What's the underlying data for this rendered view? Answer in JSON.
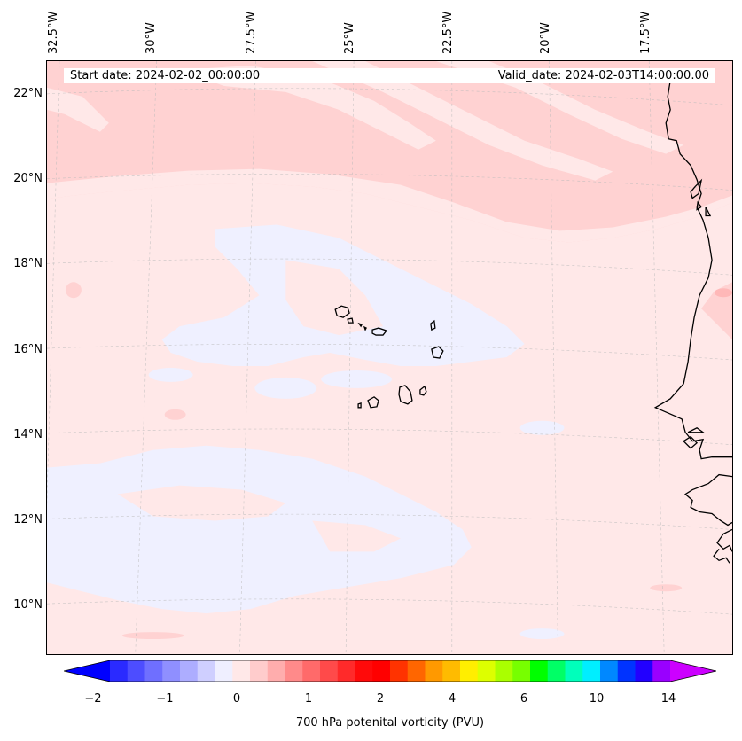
{
  "map": {
    "start_label": "Start date: 2024-02-02_00:00:00",
    "valid_label": "Valid_date: 2024-02-03T14:00:00.00",
    "lon_labels": [
      "32.5°W",
      "30°W",
      "27.5°W",
      "25°W",
      "22.5°W",
      "20°W",
      "17.5°W"
    ],
    "lat_labels": [
      "22°N",
      "20°N",
      "18°N",
      "16°N",
      "14°N",
      "12°N",
      "10°N"
    ],
    "colors": {
      "ocean_base": "#ffe8e8",
      "band_pos": "#ffd2d2",
      "band_neg": "#eff0ff",
      "coast": "#000000"
    }
  },
  "colorbar": {
    "label": "700 hPa potenital vorticity (PVU)",
    "tick_labels": [
      "−2",
      "−1",
      "0",
      "1",
      "2",
      "4",
      "6",
      "10",
      "14"
    ],
    "colors": [
      "#0000ff",
      "#2a2aff",
      "#4d4dff",
      "#6f6fff",
      "#8f8fff",
      "#adadff",
      "#cfcfff",
      "#efefff",
      "#ffe8e8",
      "#ffcccc",
      "#ffadad",
      "#ff8a8a",
      "#ff6a6a",
      "#ff4a4a",
      "#ff2a2a",
      "#ff0a0a",
      "#ff0000",
      "#ff3300",
      "#ff6600",
      "#ff9900",
      "#ffbb00",
      "#ffee00",
      "#ddff00",
      "#aaff00",
      "#77ff00",
      "#00ff00",
      "#00ff66",
      "#00ffbb",
      "#00eeff",
      "#0088ff",
      "#0033ff",
      "#2200ff",
      "#9900ff",
      "#cc00ff"
    ]
  }
}
